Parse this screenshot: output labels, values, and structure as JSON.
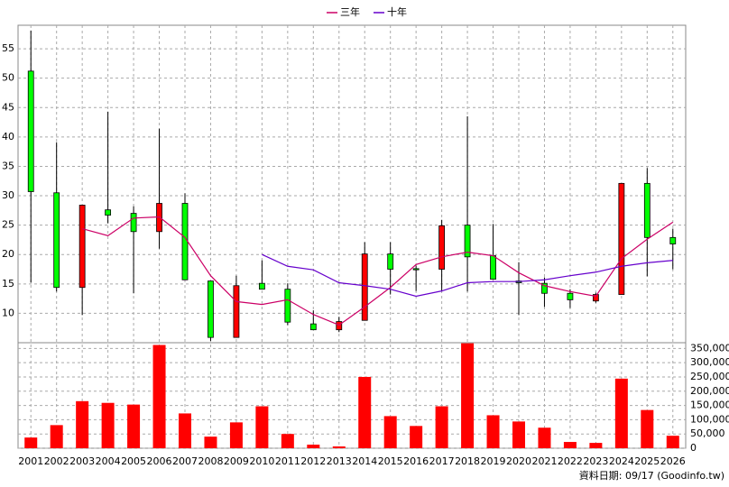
{
  "chart_data": [
    {
      "type": "candlestick",
      "categories": [
        "2001",
        "2002",
        "2003",
        "2004",
        "2005",
        "2006",
        "2007",
        "2008",
        "2009",
        "2010",
        "2011",
        "2012",
        "2013",
        "2014",
        "2015",
        "2016",
        "2017",
        "2018",
        "2019",
        "2020",
        "2021",
        "2022",
        "2023",
        "2024",
        "2025",
        "2026"
      ],
      "open": [
        51.2,
        30.5,
        14.4,
        27.6,
        27.0,
        23.9,
        28.7,
        15.5,
        5.9,
        15.1,
        14.1,
        8.2,
        7.2,
        8.8,
        20.1,
        17.6,
        17.5,
        25.0,
        19.8,
        15.5,
        15.1,
        13.4,
        12.1,
        13.2,
        32.1,
        22.9
      ],
      "high": [
        58.1,
        39.1,
        28.4,
        44.3,
        28.2,
        41.4,
        30.4,
        15.5,
        16.4,
        19.0,
        15.1,
        10.5,
        9.4,
        22.1,
        22.1,
        18.1,
        25.9,
        43.5,
        25.2,
        18.7,
        16.1,
        14.1,
        13.5,
        32.1,
        34.7,
        24.4
      ],
      "low": [
        15.2,
        13.7,
        9.7,
        25.3,
        13.4,
        21.0,
        15.7,
        5.3,
        5.9,
        14.1,
        8.0,
        7.2,
        6.8,
        8.8,
        13.2,
        13.8,
        13.7,
        13.7,
        15.8,
        9.7,
        11.1,
        10.9,
        11.8,
        13.2,
        16.3,
        17.5
      ],
      "close": [
        30.7,
        14.4,
        28.4,
        26.7,
        23.9,
        28.7,
        15.7,
        5.9,
        14.7,
        14.1,
        8.5,
        7.2,
        8.6,
        20.1,
        17.5,
        17.4,
        24.9,
        19.6,
        15.8,
        15.2,
        13.4,
        12.3,
        13.2,
        32.1,
        22.9,
        21.8
      ],
      "up_color": "#ff0000",
      "down_color": "#00ff00",
      "series": [
        {
          "name": "三年",
          "color": "#cc0066",
          "values": [
            null,
            null,
            24.4,
            23.2,
            26.2,
            26.4,
            22.9,
            16.4,
            12.0,
            11.5,
            12.3,
            9.8,
            8.0,
            11.1,
            14.4,
            18.3,
            19.6,
            20.4,
            19.8,
            16.9,
            14.7,
            13.7,
            12.9,
            19.3,
            22.6,
            25.5
          ]
        },
        {
          "name": "十年",
          "color": "#6600cc",
          "values": [
            null,
            null,
            null,
            null,
            null,
            null,
            null,
            null,
            null,
            20.0,
            18.0,
            17.4,
            15.2,
            14.7,
            14.1,
            12.9,
            13.8,
            15.2,
            15.4,
            15.4,
            15.7,
            16.4,
            17.0,
            18.0,
            18.6,
            19.0
          ]
        }
      ],
      "ylim": [
        5,
        59
      ],
      "yticks": [
        10,
        15,
        20,
        25,
        30,
        35,
        40,
        45,
        50,
        55
      ],
      "grid": true
    },
    {
      "type": "bar",
      "values": [
        37500,
        81000,
        165000,
        159000,
        153000,
        362000,
        122000,
        40600,
        90600,
        147000,
        50000,
        12500,
        6250,
        250000,
        112500,
        78000,
        147000,
        368000,
        115600,
        93700,
        72000,
        22000,
        18700,
        244000,
        134000,
        43700
      ],
      "color": "#ff0000",
      "ylim": [
        0,
        370000
      ],
      "yticks": [
        0,
        {
          "value": 50000,
          "label": "50,000"
        },
        {
          "value": 100000,
          "label": "100,000"
        },
        {
          "value": 150000,
          "label": "150,000"
        },
        {
          "value": 200000,
          "label": "200,000"
        },
        {
          "value": 250000,
          "label": "250,000"
        },
        {
          "value": 300000,
          "label": "300,000"
        },
        {
          "value": 350000,
          "label": "350,000"
        }
      ],
      "grid": true
    }
  ],
  "footer": "資料日期: 09/17 (Goodinfo.tw)"
}
